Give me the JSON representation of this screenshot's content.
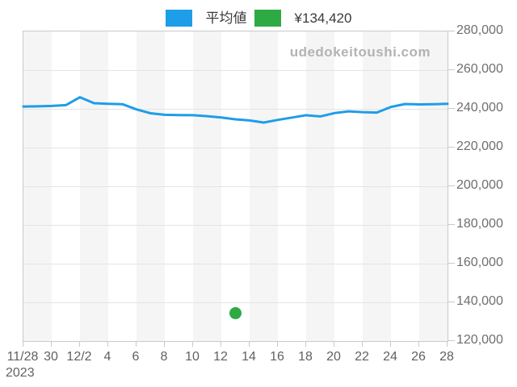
{
  "legend": {
    "items": [
      {
        "label": "平均値",
        "color": "#1e9de9",
        "kind": "average-line"
      },
      {
        "label": "¥134,420",
        "color": "#2eaa44",
        "kind": "price-marker"
      }
    ]
  },
  "watermark": "udedokeitoushi.com",
  "chart_data": {
    "type": "line",
    "title": "",
    "xlabel": "",
    "ylabel": "",
    "x_year_label": "2023",
    "categories": [
      "11/28",
      "11/29",
      "11/30",
      "12/1",
      "12/2",
      "12/3",
      "12/4",
      "12/5",
      "12/6",
      "12/7",
      "12/8",
      "12/9",
      "12/10",
      "12/11",
      "12/12",
      "12/13",
      "12/14",
      "12/15",
      "12/16",
      "12/17",
      "12/18",
      "12/19",
      "12/20",
      "12/21",
      "12/22",
      "12/23",
      "12/24",
      "12/25",
      "12/26",
      "12/27",
      "12/28"
    ],
    "x_tick_labels": [
      "11/28",
      "30",
      "12/2",
      "4",
      "6",
      "8",
      "10",
      "12",
      "14",
      "16",
      "18",
      "20",
      "22",
      "24",
      "26",
      "28"
    ],
    "x_tick_step_days": 2,
    "y_ticks": [
      280000,
      260000,
      240000,
      220000,
      200000,
      180000,
      160000,
      140000,
      120000
    ],
    "y_tick_labels": [
      "280,000",
      "260,000",
      "240,000",
      "220,000",
      "200,000",
      "180,000",
      "160,000",
      "140,000",
      "120,000"
    ],
    "ylim": [
      120000,
      280000
    ],
    "grid": "horizontal",
    "legend_position": "top-center",
    "series": [
      {
        "name": "平均値",
        "type": "line",
        "color": "#1e9de9",
        "values": [
          241200,
          241300,
          241500,
          241900,
          246000,
          242900,
          242600,
          242400,
          239700,
          237700,
          236900,
          236800,
          236700,
          236200,
          235500,
          234600,
          234000,
          232900,
          234300,
          235500,
          236700,
          236100,
          237800,
          238700,
          238300,
          238100,
          241000,
          242500,
          242300,
          242400,
          242600
        ]
      },
      {
        "name": "¥134,420",
        "type": "scatter",
        "color": "#2eaa44",
        "points": [
          {
            "date": "12/13",
            "day_index": 15,
            "value": 134420
          }
        ]
      }
    ],
    "plot_style": {
      "stripe_color": "#f5f5f5",
      "stripe_alt_color": "#ffffff",
      "stripe_width_days": 2,
      "grid_color": "#e4e4e4",
      "border_color": "#c9c9c9"
    }
  }
}
